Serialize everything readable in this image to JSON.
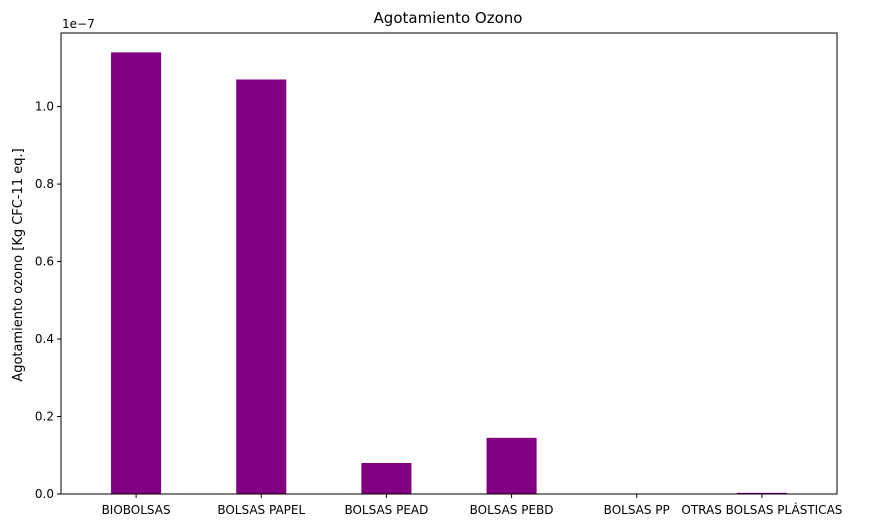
{
  "chart_data": {
    "type": "bar",
    "title": "Agotamiento Ozono",
    "xlabel": "",
    "ylabel": "Agotamiento ozono [Kg CFC-11 eq.]",
    "categories": [
      "BIOBOLSAS",
      "BOLSAS PAPEL",
      "BOLSAS PEAD",
      "BOLSAS PEBD",
      "BOLSAS PPOTRAS BOLSAS PLÁSTICAS",
      "BOLSAS PPOTRAS BOLSAS PLÁSTICAS"
    ],
    "category_labels": [
      "BIOBOLSAS",
      "BOLSAS PAPEL",
      "BOLSAS PEAD",
      "BOLSAS PEBD",
      "BOLSAS PP",
      "OTRAS BOLSAS PLÁSTICAS"
    ],
    "values": [
      1.14e-07,
      1.07e-07,
      8e-09,
      1.45e-08,
      0,
      3e-10
    ],
    "ylim": [
      0,
      1.19e-07
    ],
    "yticks": [
      0,
      2e-08,
      4e-08,
      6e-08,
      8e-08,
      1e-07
    ],
    "ytick_labels": [
      "0.0",
      "0.2",
      "0.4",
      "0.6",
      "0.8",
      "1.0"
    ],
    "offset_label": "1e−7",
    "bar_color": "#800080",
    "grid": false
  }
}
